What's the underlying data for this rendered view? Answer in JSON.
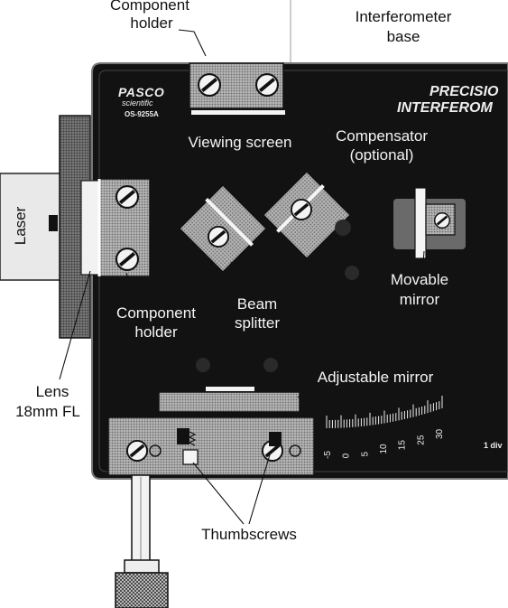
{
  "labels": {
    "component_holder_top_1": "Component",
    "component_holder_top_2": "holder",
    "interferometer_base_1": "Interferometer",
    "interferometer_base_2": "base",
    "viewing_screen": "Viewing screen",
    "compensator_1": "Compensator",
    "compensator_2": "(optional)",
    "laser": "Laser",
    "component_holder_left_1": "Component",
    "component_holder_left_2": "holder",
    "beam_splitter_1": "Beam",
    "beam_splitter_2": "splitter",
    "movable_mirror_1": "Movable",
    "movable_mirror_2": "mirror",
    "adjustable_mirror": "Adjustable mirror",
    "lens_1": "Lens",
    "lens_2": "18mm FL",
    "thumbscrews": "Thumbscrews"
  },
  "brand": {
    "logo": "PASCO",
    "logo_sub": "scientific",
    "model": "OS-9255A",
    "title_1": "PRECISIO",
    "title_2": "INTERFEROM"
  },
  "scale": {
    "ticks": [
      "-5",
      "0",
      "5",
      "10",
      "15",
      "25",
      "30"
    ],
    "unit": "1 div"
  },
  "colors": {
    "base_black": "#111111",
    "halftone_gray": "#9a9a9a",
    "label_white": "#f4f4f4"
  }
}
